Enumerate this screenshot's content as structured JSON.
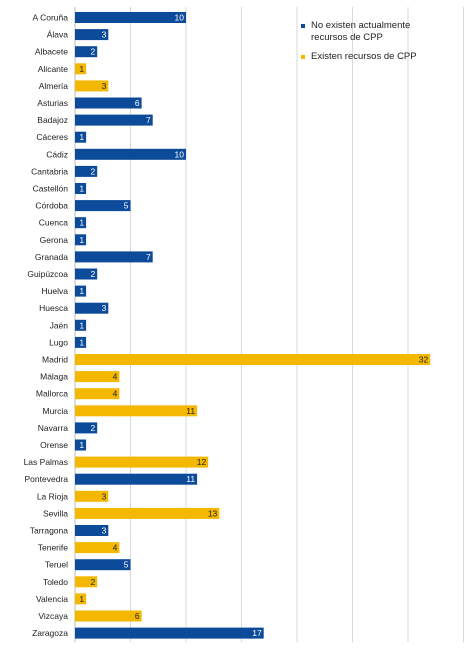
{
  "chart_data": {
    "type": "bar",
    "orientation": "horizontal",
    "categories": [
      "A Coruña",
      "Álava",
      "Albacete",
      "Alicante",
      "Almería",
      "Asturias",
      "Badajoz",
      "Cáceres",
      "Cádiz",
      "Cantabria",
      "Castellón",
      "Córdoba",
      "Cuenca",
      "Gerona",
      "Granada",
      "Guipúzcoa",
      "Huelva",
      "Huesca",
      "Jaén",
      "Lugo",
      "Madrid",
      "Málaga",
      "Mallorca",
      "Murcia",
      "Navarra",
      "Orense",
      "Las Palmas",
      "Pontevedra",
      "La Rioja",
      "Sevilla",
      "Tarragona",
      "Tenerife",
      "Teruel",
      "Toledo",
      "Valencia",
      "Vizcaya",
      "Zaragoza"
    ],
    "values": [
      10,
      3,
      2,
      1,
      3,
      6,
      7,
      1,
      10,
      2,
      1,
      5,
      1,
      1,
      7,
      2,
      1,
      3,
      1,
      1,
      32,
      4,
      4,
      11,
      2,
      1,
      12,
      11,
      3,
      13,
      3,
      4,
      5,
      2,
      1,
      6,
      17
    ],
    "series_index": [
      0,
      0,
      0,
      1,
      1,
      0,
      0,
      0,
      0,
      0,
      0,
      0,
      0,
      0,
      0,
      0,
      0,
      0,
      0,
      0,
      1,
      1,
      1,
      1,
      0,
      0,
      1,
      0,
      1,
      1,
      0,
      1,
      0,
      1,
      1,
      1,
      0
    ],
    "series": [
      {
        "name": "No existen actualmente recursos de CPP",
        "color": "#0c4a9a"
      },
      {
        "name": "Existen recursos de CPP",
        "color": "#f5b800"
      }
    ],
    "xlim": [
      0,
      35
    ],
    "grid": true,
    "legend_position": "top-right"
  }
}
